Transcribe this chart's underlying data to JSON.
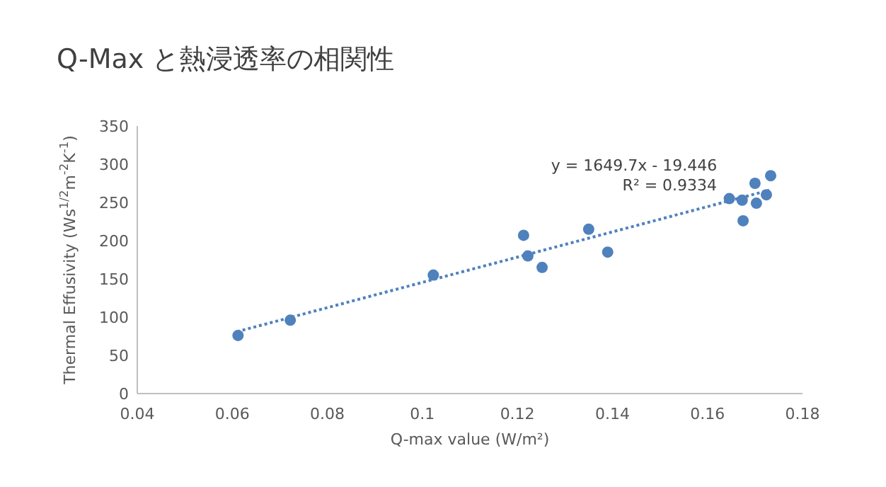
{
  "chart_data": {
    "type": "scatter",
    "title": "Q-Max と熱浸透率の相関性",
    "xlabel": "Q-max value (W/m²)",
    "ylabel": "Thermal Effusivity (Ws$^{1/2}$m$^{-2}$K$^{-1}$)",
    "xlim": [
      0.04,
      0.18
    ],
    "xticks": [
      0.04,
      0.06,
      0.08,
      0.1,
      0.12,
      0.14,
      0.16,
      0.18
    ],
    "ylim": [
      0,
      350
    ],
    "yticks": [
      0,
      50,
      100,
      150,
      200,
      250,
      300,
      350
    ],
    "grid": false,
    "series": [
      {
        "marker": "circle",
        "color": "#4f81bd",
        "x": [
          0.0612,
          0.0722,
          0.1023,
          0.1213,
          0.1222,
          0.1252,
          0.135,
          0.139,
          0.1646,
          0.1673,
          0.1675,
          0.17,
          0.1703,
          0.1724,
          0.1733
        ],
        "values": [
          76,
          96,
          155,
          207,
          180,
          165,
          215,
          185,
          255,
          253,
          226,
          275,
          249,
          260,
          285
        ]
      },
      {
        "type": "line",
        "line_style": "dotted",
        "color": "#4f81bd",
        "x": [
          0.061,
          0.173
        ],
        "values": [
          81,
          266
        ]
      }
    ],
    "annotations": [
      "y = 1649.7x - 19.446",
      "R² = 0.9334"
    ]
  }
}
